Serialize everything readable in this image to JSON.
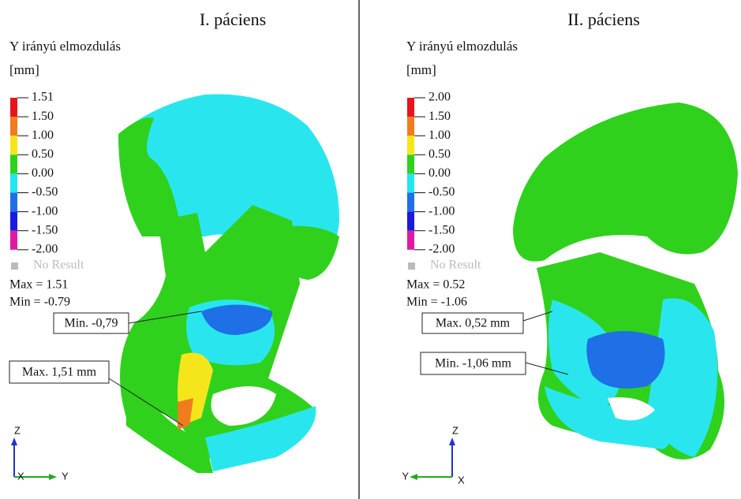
{
  "panels": [
    {
      "title": "I. páciens",
      "quantity": "Y irányú elmozdulás",
      "unit": "[mm]",
      "legend": [
        "1.51",
        "1.50",
        "1.00",
        "0.50",
        "0.00",
        "-0.50",
        "-1.00",
        "-1.50",
        "-2.00"
      ],
      "no_result": "No Result",
      "max": "Max = 1.51",
      "min": "Min = -0.79",
      "callouts": [
        "Min. -0,79",
        "Max. 1,51 mm"
      ],
      "axis_labels": [
        "Z",
        "X",
        "Y"
      ]
    },
    {
      "title": "II. páciens",
      "quantity": "Y irányú elmozdulás",
      "unit": "[mm]",
      "legend": [
        "2.00",
        "1.50",
        "1.00",
        "0.50",
        "0.00",
        "-0.50",
        "-1.00",
        "-1.50",
        "-2.00"
      ],
      "no_result": "No Result",
      "max": "Max = 0.52",
      "min": "Min = -1.06",
      "callouts": [
        "Max. 0,52 mm",
        "Min. -1,06 mm"
      ],
      "axis_labels": [
        "Z",
        "Y",
        "X"
      ]
    }
  ]
}
